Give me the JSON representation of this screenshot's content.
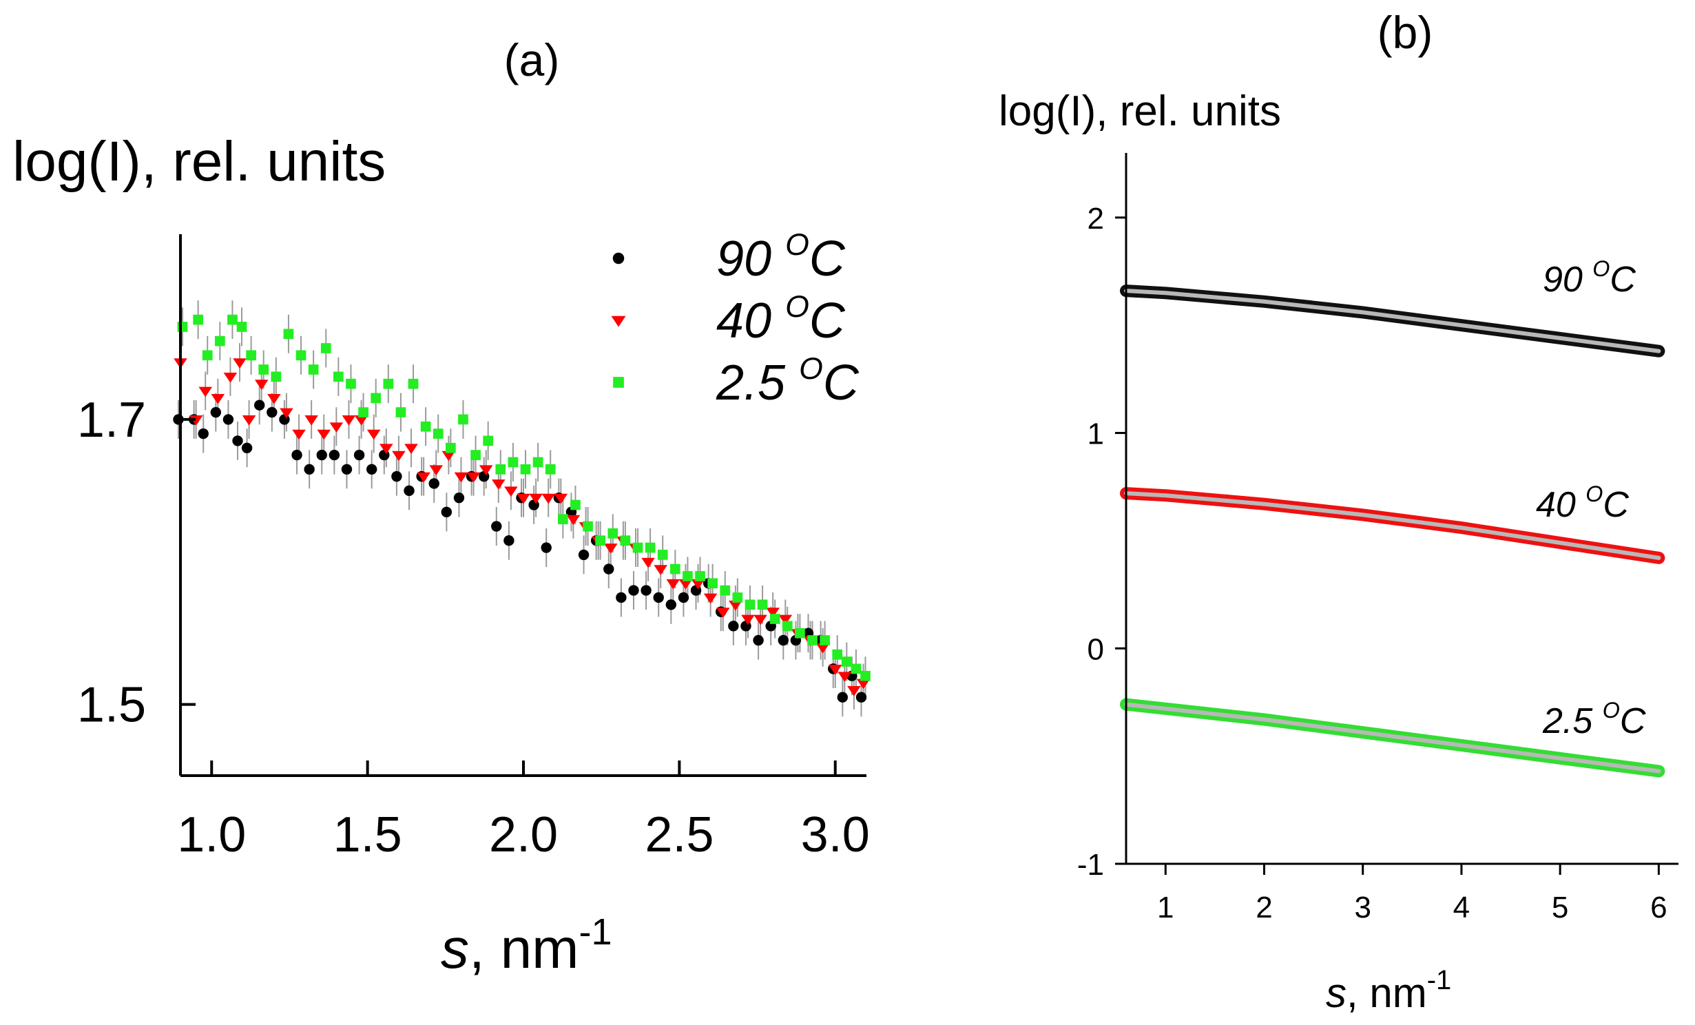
{
  "chart_data": [
    {
      "panel": "(a)",
      "type": "scatter",
      "ylabel": "log(I), rel. units",
      "xlabel_var": "s",
      "xlabel_unit": ", nm",
      "xlabel_exp": "-1",
      "xlim": [
        0.9,
        3.1
      ],
      "ylim": [
        1.45,
        1.83
      ],
      "xticks": [
        "1.0",
        "1.5",
        "2.0",
        "2.5",
        "3.0"
      ],
      "yticks": [
        "1.5",
        "1.7"
      ],
      "error_bars": true,
      "legend": [
        {
          "label": "90",
          "unit": "C",
          "sup": "O",
          "marker": "circle",
          "color": "#000000"
        },
        {
          "label": "40",
          "unit": "C",
          "sup": "O",
          "marker": "triangle-down",
          "color": "#ff0000"
        },
        {
          "label": "2.5",
          "unit": "C",
          "sup": "O",
          "marker": "square",
          "color": "#22ee22"
        }
      ],
      "series": [
        {
          "name": "90 °C",
          "color": "#000000",
          "marker": "circle",
          "points": [
            [
              0.9,
              1.7
            ],
            [
              0.95,
              1.7
            ],
            [
              0.98,
              1.69
            ],
            [
              1.02,
              1.705
            ],
            [
              1.06,
              1.7
            ],
            [
              1.09,
              1.685
            ],
            [
              1.12,
              1.68
            ],
            [
              1.16,
              1.71
            ],
            [
              1.2,
              1.705
            ],
            [
              1.24,
              1.7
            ],
            [
              1.28,
              1.675
            ],
            [
              1.32,
              1.665
            ],
            [
              1.36,
              1.675
            ],
            [
              1.4,
              1.675
            ],
            [
              1.44,
              1.665
            ],
            [
              1.48,
              1.675
            ],
            [
              1.52,
              1.665
            ],
            [
              1.56,
              1.675
            ],
            [
              1.6,
              1.66
            ],
            [
              1.64,
              1.65
            ],
            [
              1.68,
              1.66
            ],
            [
              1.72,
              1.655
            ],
            [
              1.76,
              1.635
            ],
            [
              1.8,
              1.645
            ],
            [
              1.84,
              1.66
            ],
            [
              1.88,
              1.66
            ],
            [
              1.92,
              1.625
            ],
            [
              1.96,
              1.615
            ],
            [
              2.0,
              1.645
            ],
            [
              2.04,
              1.64
            ],
            [
              2.08,
              1.61
            ],
            [
              2.12,
              1.645
            ],
            [
              2.16,
              1.635
            ],
            [
              2.2,
              1.605
            ],
            [
              2.24,
              1.615
            ],
            [
              2.28,
              1.595
            ],
            [
              2.32,
              1.575
            ],
            [
              2.36,
              1.58
            ],
            [
              2.4,
              1.58
            ],
            [
              2.44,
              1.575
            ],
            [
              2.48,
              1.57
            ],
            [
              2.52,
              1.575
            ],
            [
              2.56,
              1.58
            ],
            [
              2.6,
              1.585
            ],
            [
              2.64,
              1.565
            ],
            [
              2.68,
              1.555
            ],
            [
              2.72,
              1.555
            ],
            [
              2.76,
              1.545
            ],
            [
              2.8,
              1.555
            ],
            [
              2.84,
              1.545
            ],
            [
              2.88,
              1.545
            ],
            [
              2.92,
              1.55
            ],
            [
              2.96,
              1.545
            ],
            [
              3.0,
              1.525
            ],
            [
              3.03,
              1.505
            ],
            [
              3.06,
              1.52
            ],
            [
              3.09,
              1.505
            ]
          ]
        },
        {
          "name": "40 °C",
          "color": "#ff0000",
          "marker": "triangle-down",
          "points": [
            [
              0.9,
              1.74
            ],
            [
              0.95,
              1.7
            ],
            [
              0.98,
              1.72
            ],
            [
              1.02,
              1.715
            ],
            [
              1.06,
              1.73
            ],
            [
              1.09,
              1.74
            ],
            [
              1.12,
              1.7
            ],
            [
              1.16,
              1.725
            ],
            [
              1.2,
              1.715
            ],
            [
              1.24,
              1.705
            ],
            [
              1.28,
              1.69
            ],
            [
              1.32,
              1.7
            ],
            [
              1.36,
              1.69
            ],
            [
              1.4,
              1.695
            ],
            [
              1.44,
              1.7
            ],
            [
              1.48,
              1.7
            ],
            [
              1.52,
              1.69
            ],
            [
              1.56,
              1.68
            ],
            [
              1.6,
              1.675
            ],
            [
              1.64,
              1.68
            ],
            [
              1.68,
              1.66
            ],
            [
              1.72,
              1.665
            ],
            [
              1.76,
              1.675
            ],
            [
              1.8,
              1.66
            ],
            [
              1.84,
              1.66
            ],
            [
              1.88,
              1.665
            ],
            [
              1.92,
              1.655
            ],
            [
              1.96,
              1.65
            ],
            [
              2.0,
              1.645
            ],
            [
              2.04,
              1.645
            ],
            [
              2.08,
              1.645
            ],
            [
              2.12,
              1.645
            ],
            [
              2.16,
              1.63
            ],
            [
              2.2,
              1.625
            ],
            [
              2.24,
              1.615
            ],
            [
              2.28,
              1.61
            ],
            [
              2.32,
              1.615
            ],
            [
              2.36,
              1.61
            ],
            [
              2.4,
              1.6
            ],
            [
              2.44,
              1.595
            ],
            [
              2.48,
              1.585
            ],
            [
              2.52,
              1.585
            ],
            [
              2.56,
              1.585
            ],
            [
              2.6,
              1.575
            ],
            [
              2.64,
              1.565
            ],
            [
              2.68,
              1.57
            ],
            [
              2.72,
              1.56
            ],
            [
              2.76,
              1.56
            ],
            [
              2.8,
              1.565
            ],
            [
              2.84,
              1.56
            ],
            [
              2.88,
              1.55
            ],
            [
              2.92,
              1.545
            ],
            [
              2.96,
              1.54
            ],
            [
              3.0,
              1.525
            ],
            [
              3.03,
              1.52
            ],
            [
              3.06,
              1.51
            ],
            [
              3.09,
              1.515
            ]
          ]
        },
        {
          "name": "2.5 °C",
          "color": "#22ee22",
          "marker": "square",
          "points": [
            [
              0.9,
              1.765
            ],
            [
              0.95,
              1.77
            ],
            [
              0.98,
              1.745
            ],
            [
              1.02,
              1.755
            ],
            [
              1.06,
              1.77
            ],
            [
              1.09,
              1.765
            ],
            [
              1.12,
              1.745
            ],
            [
              1.16,
              1.735
            ],
            [
              1.2,
              1.73
            ],
            [
              1.24,
              1.76
            ],
            [
              1.28,
              1.745
            ],
            [
              1.32,
              1.735
            ],
            [
              1.36,
              1.75
            ],
            [
              1.4,
              1.73
            ],
            [
              1.44,
              1.725
            ],
            [
              1.48,
              1.705
            ],
            [
              1.52,
              1.715
            ],
            [
              1.56,
              1.725
            ],
            [
              1.6,
              1.705
            ],
            [
              1.64,
              1.725
            ],
            [
              1.68,
              1.695
            ],
            [
              1.72,
              1.69
            ],
            [
              1.76,
              1.68
            ],
            [
              1.8,
              1.7
            ],
            [
              1.84,
              1.675
            ],
            [
              1.88,
              1.685
            ],
            [
              1.92,
              1.665
            ],
            [
              1.96,
              1.67
            ],
            [
              2.0,
              1.665
            ],
            [
              2.04,
              1.67
            ],
            [
              2.08,
              1.665
            ],
            [
              2.12,
              1.63
            ],
            [
              2.16,
              1.64
            ],
            [
              2.2,
              1.625
            ],
            [
              2.24,
              1.615
            ],
            [
              2.28,
              1.62
            ],
            [
              2.32,
              1.615
            ],
            [
              2.36,
              1.61
            ],
            [
              2.4,
              1.61
            ],
            [
              2.44,
              1.605
            ],
            [
              2.48,
              1.595
            ],
            [
              2.52,
              1.59
            ],
            [
              2.56,
              1.59
            ],
            [
              2.6,
              1.585
            ],
            [
              2.64,
              1.58
            ],
            [
              2.68,
              1.575
            ],
            [
              2.72,
              1.57
            ],
            [
              2.76,
              1.57
            ],
            [
              2.8,
              1.56
            ],
            [
              2.84,
              1.555
            ],
            [
              2.88,
              1.55
            ],
            [
              2.92,
              1.545
            ],
            [
              2.96,
              1.545
            ],
            [
              3.0,
              1.535
            ],
            [
              3.03,
              1.53
            ],
            [
              3.06,
              1.525
            ],
            [
              3.09,
              1.52
            ]
          ]
        }
      ]
    },
    {
      "panel": "(b)",
      "type": "line",
      "ylabel": "log(I), rel. units",
      "xlabel_var": "s",
      "xlabel_unit": ", nm",
      "xlabel_exp": "-1",
      "xlim": [
        0.6,
        6.2
      ],
      "ylim": [
        -1,
        2.3
      ],
      "xticks": [
        "1",
        "2",
        "3",
        "4",
        "5",
        "6"
      ],
      "yticks": [
        "-1",
        "0",
        "1",
        "2"
      ],
      "fit_color": "#b8b8b8",
      "series": [
        {
          "name": "90 °C",
          "label": "90",
          "unit": "C",
          "sup": "O",
          "color": "#111111",
          "x": [
            0.6,
            1,
            2,
            3,
            4,
            5,
            6
          ],
          "y": [
            1.66,
            1.65,
            1.61,
            1.56,
            1.5,
            1.44,
            1.38
          ]
        },
        {
          "name": "40 °C",
          "label": "40",
          "unit": "C",
          "sup": "O",
          "color": "#ee1111",
          "x": [
            0.6,
            1,
            2,
            3,
            4,
            5,
            6
          ],
          "y": [
            0.72,
            0.71,
            0.67,
            0.62,
            0.56,
            0.49,
            0.42
          ]
        },
        {
          "name": "2.5 °C",
          "label": "2.5",
          "unit": "C",
          "sup": "O",
          "color": "#33dd33",
          "x": [
            0.6,
            1,
            2,
            3,
            4,
            5,
            6
          ],
          "y": [
            -0.26,
            -0.28,
            -0.33,
            -0.39,
            -0.45,
            -0.51,
            -0.57
          ]
        }
      ]
    }
  ]
}
